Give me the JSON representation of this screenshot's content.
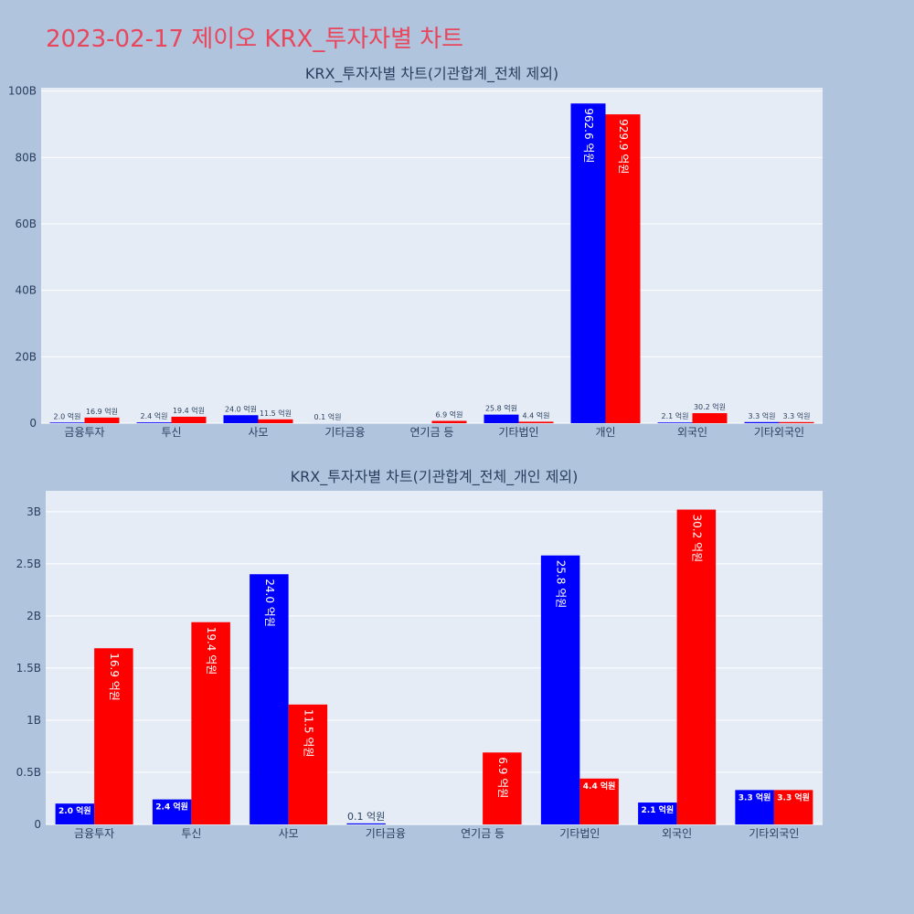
{
  "page_title": "2023-02-17 제이오 KRX_투자자별 차트",
  "colors": {
    "background": "#b0c4de",
    "plot_bg": "#e5ecf6",
    "title": "#e8465c",
    "buy": "#0000ff",
    "sell": "#ff0000"
  },
  "chart_data": [
    {
      "type": "bar",
      "title": "KRX_투자자별 차트(기관합계_전체 제외)",
      "categories": [
        "금융투자",
        "투신",
        "사모",
        "기타금융",
        "연기금 등",
        "기타법인",
        "개인",
        "외국인",
        "기타외국인"
      ],
      "series": [
        {
          "color": "#0000ff",
          "values": [
            0.2,
            0.24,
            2.4,
            0.01,
            0,
            2.58,
            96.26,
            0.21,
            0.33
          ],
          "labels": [
            "2.0 억원",
            "2.4 억원",
            "24.0 억원",
            "0.1 억원",
            "",
            "25.8 억원",
            "962.6 억원",
            "2.1 억원",
            "3.3 억원"
          ]
        },
        {
          "color": "#ff0000",
          "values": [
            1.69,
            1.94,
            1.15,
            0,
            0.69,
            0.44,
            92.99,
            3.02,
            0.33
          ],
          "labels": [
            "16.9 억원",
            "19.4 억원",
            "11.5 억원",
            "",
            "6.9 억원",
            "4.4 억원",
            "929.9 억원",
            "30.2 억원",
            "3.3 억원"
          ]
        }
      ],
      "yticks": [
        "0",
        "20B",
        "40B",
        "60B",
        "80B",
        "100B"
      ],
      "ylim": [
        0,
        101
      ],
      "grid": true
    },
    {
      "type": "bar",
      "title": "KRX_투자자별 차트(기관합계_전체_개인 제외)",
      "categories": [
        "금융투자",
        "투신",
        "사모",
        "기타금융",
        "연기금 등",
        "기타법인",
        "외국인",
        "기타외국인"
      ],
      "series": [
        {
          "color": "#0000ff",
          "values": [
            0.2,
            0.24,
            2.4,
            0.01,
            0,
            2.58,
            0.21,
            0.33
          ],
          "labels": [
            "2.0 억원",
            "2.4 억원",
            "24.0 억원",
            "0.1 억원",
            "",
            "25.8 억원",
            "2.1 억원",
            "3.3 억원"
          ]
        },
        {
          "color": "#ff0000",
          "values": [
            1.69,
            1.94,
            1.15,
            0,
            0.69,
            0.44,
            3.02,
            0.33
          ],
          "labels": [
            "16.9 억원",
            "19.4 억원",
            "11.5 억원",
            "",
            "6.9 억원",
            "4.4 억원",
            "30.2 억원",
            "3.3 억원"
          ]
        }
      ],
      "yticks": [
        "0",
        "0.5B",
        "1B",
        "1.5B",
        "2B",
        "2.5B",
        "3B"
      ],
      "ylim": [
        0,
        3.2
      ],
      "grid": true
    }
  ]
}
